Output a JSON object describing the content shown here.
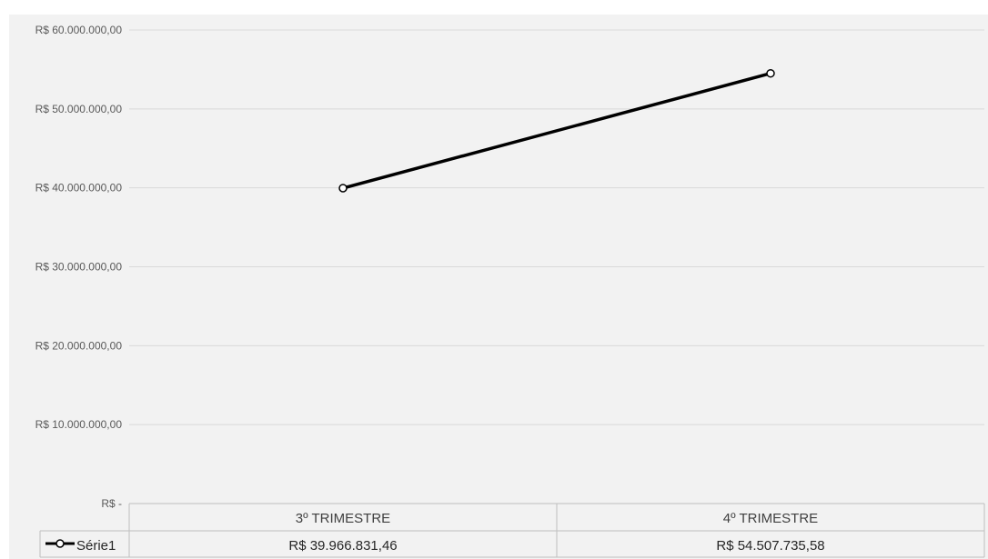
{
  "chart_data": {
    "type": "line",
    "categories": [
      "3º TRIMESTRE",
      "4º TRIMESTRE"
    ],
    "series": [
      {
        "name": "Série1",
        "values": [
          39966831.46,
          54507735.58
        ],
        "value_labels": [
          "R$ 39.966.831,46",
          "R$ 54.507.735,58"
        ],
        "color": "#000000",
        "marker": "circle-open"
      }
    ],
    "ylim": [
      0,
      60000000
    ],
    "ytick_values": [
      0,
      10000000,
      20000000,
      30000000,
      40000000,
      50000000,
      60000000
    ],
    "ytick_labels": [
      "R$ -",
      "R$ 10.000.000,00",
      "R$ 20.000.000,00",
      "R$ 30.000.000,00",
      "R$ 40.000.000,00",
      "R$ 50.000.000,00",
      "R$ 60.000.000,00"
    ],
    "grid": true,
    "data_table": true,
    "legend": "in data table",
    "colors": {
      "background": "#f2f2f2",
      "gridline": "#d9d9d9",
      "line": "#000000"
    }
  }
}
